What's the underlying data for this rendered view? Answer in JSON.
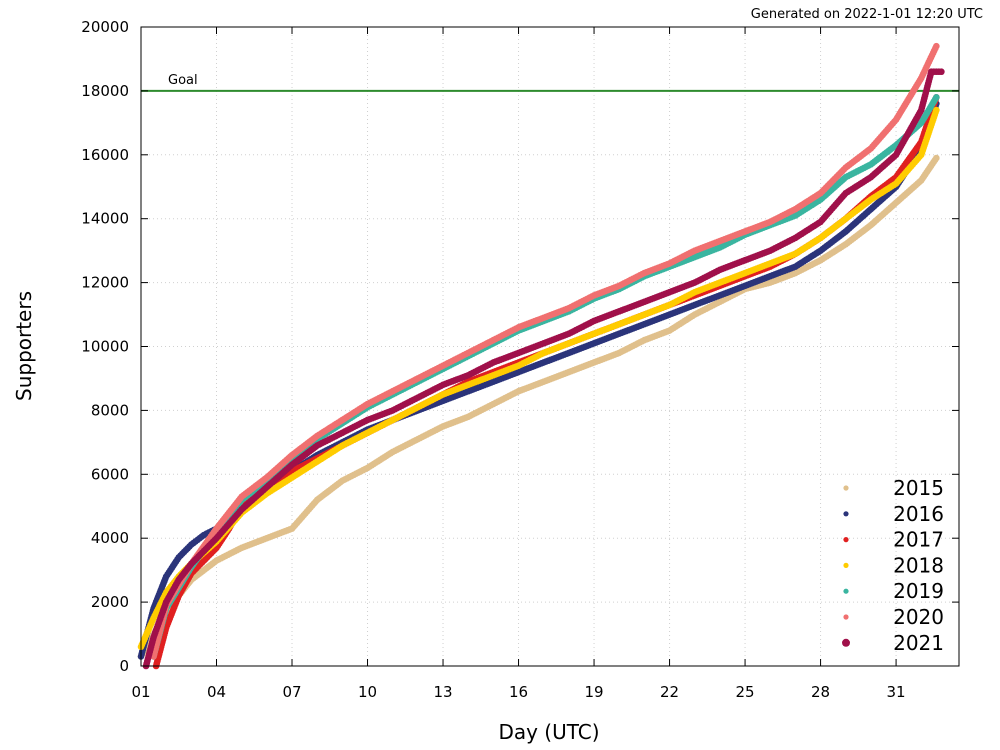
{
  "generated_text": "Generated on 2022-1-01 12:20 UTC",
  "chart_data": {
    "type": "scatter",
    "xlabel": "Day (UTC)",
    "ylabel": "Supporters",
    "xlim": [
      1,
      33.5
    ],
    "ylim": [
      0,
      20000
    ],
    "x_tick_labels": [
      "01",
      "04",
      "07",
      "10",
      "13",
      "16",
      "19",
      "22",
      "25",
      "28",
      "31"
    ],
    "x_ticks": [
      1,
      4,
      7,
      10,
      13,
      16,
      19,
      22,
      25,
      28,
      31
    ],
    "y_ticks": [
      0,
      2000,
      4000,
      6000,
      8000,
      10000,
      12000,
      14000,
      16000,
      18000,
      20000
    ],
    "grid": true,
    "legend_position": "bottom-right",
    "goal": {
      "label": "Goal",
      "value": 18000,
      "color": "#2e8b2e"
    },
    "series": [
      {
        "name": "2015",
        "color": "#e0c08c",
        "x": [
          1.0,
          2.0,
          3.0,
          4.0,
          5.0,
          6.0,
          7.0,
          8.0,
          9.0,
          10.0,
          11.0,
          12.0,
          13.0,
          14.0,
          15.0,
          16.0,
          17.0,
          18.0,
          19.0,
          20.0,
          21.0,
          22.0,
          23.0,
          24.0,
          25.0,
          26.0,
          27.0,
          28.0,
          29.0,
          30.0,
          31.0,
          32.0,
          32.6
        ],
        "y": [
          300,
          1700,
          2700,
          3300,
          3700,
          4000,
          4300,
          5200,
          5800,
          6200,
          6700,
          7100,
          7500,
          7800,
          8200,
          8600,
          8900,
          9200,
          9500,
          9800,
          10200,
          10500,
          11000,
          11400,
          11800,
          12000,
          12300,
          12700,
          13200,
          13800,
          14500,
          15200,
          15900
        ]
      },
      {
        "name": "2016",
        "color": "#2b347a",
        "x": [
          1.0,
          1.5,
          2.0,
          2.5,
          3.0,
          3.5,
          4.0,
          5.0,
          6.0,
          7.0,
          8.0,
          9.0,
          10.0,
          11.0,
          12.0,
          13.0,
          14.0,
          15.0,
          16.0,
          17.0,
          18.0,
          19.0,
          20.0,
          21.0,
          22.0,
          23.0,
          24.0,
          25.0,
          26.0,
          27.0,
          28.0,
          29.0,
          30.0,
          31.0,
          32.0,
          32.6
        ],
        "y": [
          300,
          1800,
          2800,
          3400,
          3800,
          4100,
          4300,
          4900,
          5500,
          6100,
          6600,
          7000,
          7400,
          7700,
          8000,
          8300,
          8600,
          8900,
          9200,
          9500,
          9800,
          10100,
          10400,
          10700,
          11000,
          11300,
          11600,
          11900,
          12200,
          12500,
          13000,
          13600,
          14300,
          15000,
          16200,
          17600
        ]
      },
      {
        "name": "2017",
        "color": "#e02020",
        "x": [
          1.6,
          2.0,
          2.5,
          3.0,
          3.5,
          4.0,
          4.5,
          5.0,
          6.0,
          7.0,
          8.0,
          9.0,
          10.0,
          11.0,
          12.0,
          13.0,
          14.0,
          15.0,
          16.0,
          17.0,
          18.0,
          19.0,
          20.0,
          21.0,
          22.0,
          23.0,
          24.0,
          25.0,
          26.0,
          27.0,
          28.0,
          29.0,
          30.0,
          31.0,
          32.0,
          32.6
        ],
        "y": [
          0,
          1200,
          2200,
          2900,
          3300,
          3700,
          4300,
          5000,
          5600,
          6100,
          6500,
          6900,
          7300,
          7700,
          8100,
          8500,
          8900,
          9200,
          9500,
          9800,
          10100,
          10400,
          10700,
          11000,
          11300,
          11600,
          11900,
          12200,
          12500,
          12900,
          13400,
          14000,
          14700,
          15300,
          16400,
          17800
        ]
      },
      {
        "name": "2018",
        "color": "#ffcc00",
        "x": [
          1.0,
          1.5,
          2.0,
          2.5,
          3.0,
          4.0,
          5.0,
          6.0,
          7.0,
          8.0,
          9.0,
          10.0,
          11.0,
          12.0,
          13.0,
          14.0,
          15.0,
          16.0,
          17.0,
          18.0,
          19.0,
          20.0,
          21.0,
          22.0,
          23.0,
          24.0,
          25.0,
          26.0,
          27.0,
          28.0,
          29.0,
          30.0,
          31.0,
          32.0,
          32.6
        ],
        "y": [
          600,
          1500,
          2300,
          2800,
          3200,
          3900,
          4800,
          5400,
          5900,
          6400,
          6900,
          7300,
          7700,
          8100,
          8500,
          8800,
          9100,
          9400,
          9800,
          10100,
          10400,
          10700,
          11000,
          11300,
          11700,
          12000,
          12300,
          12600,
          12900,
          13400,
          14000,
          14600,
          15100,
          16000,
          17400
        ]
      },
      {
        "name": "2019",
        "color": "#3ab5a0",
        "x": [
          1.5,
          2.0,
          3.0,
          4.0,
          5.0,
          6.0,
          7.0,
          8.0,
          9.0,
          10.0,
          11.0,
          12.0,
          13.0,
          14.0,
          15.0,
          16.0,
          17.0,
          18.0,
          19.0,
          20.0,
          21.0,
          22.0,
          23.0,
          24.0,
          25.0,
          26.0,
          27.0,
          28.0,
          29.0,
          30.0,
          31.0,
          32.0,
          32.6
        ],
        "y": [
          300,
          1800,
          3100,
          4200,
          5200,
          5800,
          6500,
          7100,
          7600,
          8100,
          8500,
          8900,
          9300,
          9700,
          10100,
          10500,
          10800,
          11100,
          11500,
          11800,
          12200,
          12500,
          12800,
          13100,
          13500,
          13800,
          14100,
          14600,
          15300,
          15700,
          16300,
          17000,
          17800
        ]
      },
      {
        "name": "2020",
        "color": "#f07070",
        "x": [
          1.5,
          2.0,
          3.0,
          4.0,
          5.0,
          6.0,
          7.0,
          8.0,
          9.0,
          10.0,
          11.0,
          12.0,
          13.0,
          14.0,
          15.0,
          16.0,
          17.0,
          18.0,
          19.0,
          20.0,
          21.0,
          22.0,
          23.0,
          24.0,
          25.0,
          26.0,
          27.0,
          28.0,
          29.0,
          30.0,
          31.0,
          32.0,
          32.6
        ],
        "y": [
          300,
          1900,
          3200,
          4300,
          5300,
          5900,
          6600,
          7200,
          7700,
          8200,
          8600,
          9000,
          9400,
          9800,
          10200,
          10600,
          10900,
          11200,
          11600,
          11900,
          12300,
          12600,
          13000,
          13300,
          13600,
          13900,
          14300,
          14800,
          15600,
          16200,
          17100,
          18400,
          19400
        ]
      },
      {
        "name": "2021",
        "color": "#a0104a",
        "x": [
          1.2,
          1.5,
          2.0,
          2.5,
          3.0,
          4.0,
          5.0,
          6.0,
          7.0,
          8.0,
          9.0,
          10.0,
          11.0,
          12.0,
          13.0,
          14.0,
          15.0,
          16.0,
          17.0,
          18.0,
          19.0,
          20.0,
          21.0,
          22.0,
          23.0,
          24.0,
          25.0,
          26.0,
          27.0,
          28.0,
          29.0,
          30.0,
          31.0,
          32.0,
          32.4,
          32.8
        ],
        "y": [
          0,
          900,
          2000,
          2700,
          3200,
          4000,
          4900,
          5600,
          6300,
          6900,
          7300,
          7700,
          8000,
          8400,
          8800,
          9100,
          9500,
          9800,
          10100,
          10400,
          10800,
          11100,
          11400,
          11700,
          12000,
          12400,
          12700,
          13000,
          13400,
          13900,
          14800,
          15300,
          16000,
          17400,
          18600,
          18600
        ]
      }
    ]
  }
}
